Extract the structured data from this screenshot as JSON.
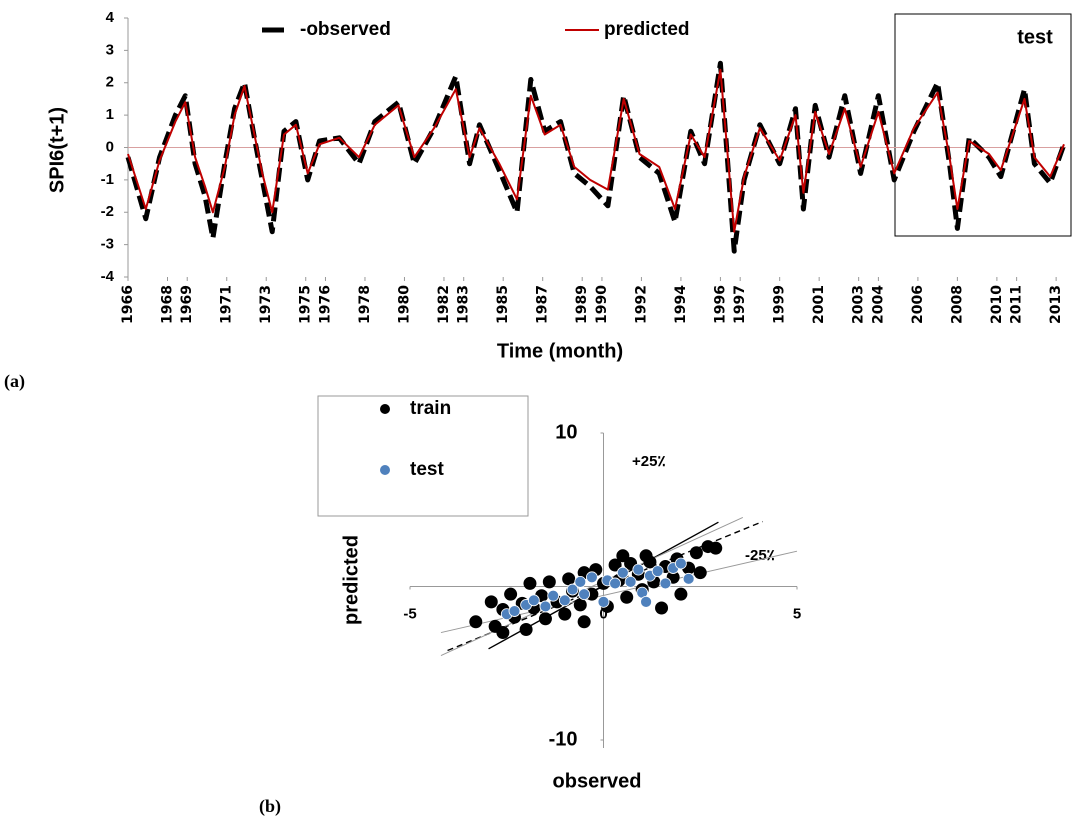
{
  "chart_data": [
    {
      "type": "line",
      "y_label": "SPI6(t+1)",
      "x_label": "Time (month)",
      "panel_label": "(a)",
      "annotation": "test",
      "x": [
        1966.0,
        1966.9,
        1967.6,
        1968.4,
        1968.9,
        1969.4,
        1969.9,
        1970.3,
        1970.9,
        1971.4,
        1971.9,
        1972.4,
        1972.8,
        1973.3,
        1973.9,
        1974.5,
        1975.1,
        1975.7,
        1976.7,
        1977.7,
        1978.5,
        1979.7,
        1980.5,
        1981.5,
        1982.6,
        1983.3,
        1983.8,
        1984.8,
        1985.7,
        1986.4,
        1987.1,
        1987.9,
        1988.6,
        1989.4,
        1990.3,
        1991.1,
        1991.9,
        1992.9,
        1993.7,
        1994.5,
        1995.2,
        1996.0,
        1996.7,
        1997.2,
        1998.0,
        1999.0,
        1999.8,
        2000.2,
        2000.8,
        2001.5,
        2002.3,
        2003.1,
        2004.0,
        2004.8,
        2005.8,
        2007.0,
        2007.6,
        2008.0,
        2008.6,
        2009.6,
        2010.2,
        2011.4,
        2011.9,
        2012.7,
        2013.4
      ],
      "series": [
        {
          "name": "-observed",
          "color": "#000000",
          "dashed": true,
          "values": [
            -0.3,
            -2.2,
            -0.3,
            1.0,
            1.6,
            -0.5,
            -1.5,
            -2.8,
            -0.5,
            1.2,
            2.0,
            0.3,
            -1.0,
            -2.6,
            0.5,
            0.8,
            -1.0,
            0.2,
            0.3,
            -0.5,
            0.8,
            1.4,
            -0.5,
            0.6,
            2.2,
            -0.5,
            0.7,
            -0.7,
            -2.0,
            2.1,
            0.5,
            0.8,
            -0.8,
            -1.2,
            -1.8,
            1.6,
            -0.3,
            -0.8,
            -2.3,
            0.5,
            -0.5,
            2.6,
            -3.2,
            -1.0,
            0.7,
            -0.5,
            1.2,
            -1.9,
            1.3,
            -0.3,
            1.6,
            -0.8,
            1.6,
            -1.0,
            0.5,
            2.0,
            -0.5,
            -2.5,
            0.3,
            -0.3,
            -0.9,
            1.8,
            -0.5,
            -1.1,
            0.1
          ]
        },
        {
          "name": "predicted",
          "color": "#c00000",
          "dashed": false,
          "values": [
            -0.2,
            -1.9,
            -0.4,
            0.8,
            1.4,
            -0.3,
            -1.2,
            -2.0,
            -0.6,
            1.0,
            1.9,
            0.4,
            -0.8,
            -2.0,
            0.4,
            0.7,
            -0.8,
            0.1,
            0.3,
            -0.3,
            0.7,
            1.3,
            -0.3,
            0.6,
            1.8,
            -0.3,
            0.6,
            -0.5,
            -1.6,
            1.6,
            0.4,
            0.7,
            -0.6,
            -1.0,
            -1.3,
            1.5,
            -0.2,
            -0.6,
            -1.9,
            0.4,
            -0.3,
            2.4,
            -2.6,
            -0.9,
            0.6,
            -0.4,
            1.0,
            -1.4,
            1.1,
            -0.2,
            1.2,
            -0.6,
            1.1,
            -0.8,
            0.6,
            1.7,
            -0.3,
            -1.9,
            0.2,
            -0.2,
            -0.7,
            1.5,
            -0.3,
            -0.9,
            0.1
          ]
        }
      ],
      "xlim": [
        1966,
        2013.5
      ],
      "ylim": [
        -4,
        4
      ],
      "xticks": [
        1966,
        1968,
        1969,
        1971,
        1973,
        1975,
        1976,
        1978,
        1980,
        1982,
        1983,
        1985,
        1987,
        1989,
        1990,
        1992,
        1994,
        1996,
        1997,
        1999,
        2001,
        2003,
        2004,
        2006,
        2008,
        2010,
        2011,
        2013
      ],
      "yticks": [
        -4,
        -3,
        -2,
        -1,
        0,
        1,
        2,
        3,
        4
      ],
      "zero_line": true
    },
    {
      "type": "scatter",
      "x_label": "observed",
      "y_label": "predicted",
      "panel_label": "(b)",
      "annotations": [
        "+25٪",
        "-25٪"
      ],
      "xlim": [
        -5,
        5
      ],
      "ylim": [
        -10,
        10
      ],
      "xticks": [
        -5,
        0,
        5
      ],
      "yticks": [
        -10,
        10
      ],
      "series": [
        {
          "name": "train",
          "color": "#000000",
          "x": [
            -3.3,
            -2.9,
            -2.8,
            -2.6,
            -2.4,
            -2.3,
            -2.1,
            -2.0,
            -1.9,
            -1.8,
            -1.6,
            -1.5,
            -1.4,
            -1.2,
            -1.0,
            -0.9,
            -0.8,
            -0.6,
            -0.5,
            -0.3,
            -0.2,
            0.0,
            0.1,
            0.3,
            0.4,
            0.6,
            0.7,
            0.9,
            1.0,
            1.2,
            1.3,
            1.5,
            1.6,
            1.8,
            1.9,
            2.0,
            2.2,
            2.4,
            2.5,
            2.7,
            2.9,
            -0.5,
            0.5,
            1.1,
            -2.6
          ],
          "values": [
            -2.3,
            -1.0,
            -2.6,
            -1.5,
            -0.5,
            -2.0,
            -1.1,
            -2.8,
            0.2,
            -1.4,
            -0.6,
            -2.1,
            0.3,
            -1.0,
            -1.8,
            0.5,
            -0.3,
            -1.2,
            0.9,
            -0.5,
            1.1,
            0.2,
            -1.3,
            1.4,
            0.4,
            -0.7,
            1.5,
            0.8,
            -0.2,
            1.6,
            0.3,
            -1.4,
            1.3,
            0.6,
            1.8,
            -0.5,
            1.2,
            2.2,
            0.9,
            2.6,
            2.5,
            -2.3,
            2.0,
            2.0,
            -3.0
          ]
        },
        {
          "name": "test",
          "color": "#4f81bd",
          "x": [
            -2.5,
            -2.3,
            -2.0,
            -1.8,
            -1.5,
            -1.3,
            -1.0,
            -0.8,
            -0.5,
            -0.3,
            0.0,
            0.1,
            0.3,
            0.5,
            0.7,
            0.9,
            1.0,
            1.2,
            1.4,
            1.6,
            1.8,
            2.0,
            2.2,
            1.1,
            -0.6
          ],
          "values": [
            -1.8,
            -1.6,
            -1.2,
            -0.9,
            -1.3,
            -0.6,
            -0.9,
            -0.2,
            -0.5,
            0.6,
            -1.0,
            0.4,
            0.2,
            0.9,
            0.3,
            1.1,
            -0.4,
            0.7,
            1.0,
            0.2,
            1.2,
            1.5,
            0.5,
            -1.0,
            0.3
          ]
        }
      ],
      "reference_lines": [
        {
          "x": [
            -2.97,
            2.97
          ],
          "y": [
            -4.06,
            4.19
          ],
          "color": "#000000",
          "dashed": false
        },
        {
          "x": [
            -4.03,
            4.11
          ],
          "y": [
            -4.17,
            4.23
          ],
          "color": "#000000",
          "dashed": true
        },
        {
          "x": [
            -4.2,
            3.6
          ],
          "y": [
            -4.5,
            4.5
          ],
          "color": "#999999",
          "dashed": false
        },
        {
          "x": [
            -4.2,
            5.0
          ],
          "y": [
            -3.0,
            2.3
          ],
          "color": "#999999",
          "dashed": false
        }
      ]
    }
  ]
}
